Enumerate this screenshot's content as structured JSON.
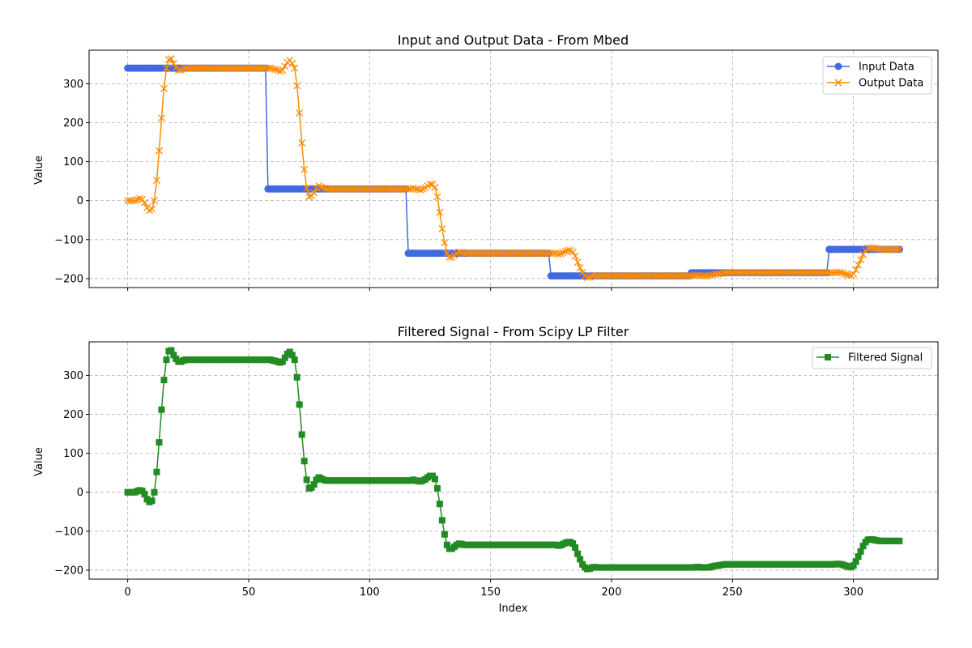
{
  "chart_data": [
    {
      "type": "line",
      "title": "Input and Output Data - From Mbed",
      "xlabel": "",
      "ylabel": "Value",
      "xlim": [
        -15.95,
        334.95
      ],
      "ylim": [
        -223,
        386
      ],
      "x_ticks": [
        0,
        50,
        100,
        150,
        200,
        250,
        300
      ],
      "x_tick_labels_shown": false,
      "y_ticks": [
        -200,
        -100,
        0,
        100,
        200,
        300
      ],
      "y_tick_labels": [
        "−200",
        "−100",
        "0",
        "100",
        "200",
        "300"
      ],
      "grid": true,
      "legend_position": "top-right",
      "series": [
        {
          "name": "Input Data",
          "color": "#4169e1",
          "marker": "circle",
          "segments": [
            {
              "x_start": 0,
              "x_end": 57,
              "y": 340
            },
            {
              "x_start": 58,
              "x_end": 115,
              "y": 30
            },
            {
              "x_start": 116,
              "x_end": 174,
              "y": -135
            },
            {
              "x_start": 175,
              "x_end": 232,
              "y": -193
            },
            {
              "x_start": 233,
              "x_end": 289,
              "y": -185
            },
            {
              "x_start": 290,
              "x_end": 319,
              "y": -125
            }
          ]
        },
        {
          "name": "Output Data",
          "color": "#ff8c00",
          "marker": "x",
          "points": [
            [
              0,
              0
            ],
            [
              1,
              0
            ],
            [
              2,
              0
            ],
            [
              3,
              0
            ],
            [
              4,
              3
            ],
            [
              5,
              5
            ],
            [
              6,
              3
            ],
            [
              7,
              -5
            ],
            [
              8,
              -18
            ],
            [
              9,
              -25
            ],
            [
              10,
              -22
            ],
            [
              11,
              0
            ],
            [
              12,
              52
            ],
            [
              13,
              128
            ],
            [
              14,
              212
            ],
            [
              15,
              288
            ],
            [
              16,
              340
            ],
            [
              17,
              362
            ],
            [
              18,
              364
            ],
            [
              19,
              352
            ],
            [
              20,
              342
            ],
            [
              21,
              335
            ],
            [
              22,
              335
            ],
            [
              23,
              338
            ],
            [
              58,
              340
            ],
            [
              59,
              340
            ],
            [
              60,
              338
            ],
            [
              61,
              337
            ],
            [
              62,
              335
            ],
            [
              63,
              333
            ],
            [
              64,
              335
            ],
            [
              65,
              345
            ],
            [
              66,
              355
            ],
            [
              67,
              360
            ],
            [
              68,
              352
            ],
            [
              69,
              340
            ],
            [
              70,
              295
            ],
            [
              71,
              225
            ],
            [
              72,
              148
            ],
            [
              73,
              80
            ],
            [
              74,
              32
            ],
            [
              75,
              10
            ],
            [
              76,
              12
            ],
            [
              77,
              20
            ],
            [
              78,
              32
            ],
            [
              79,
              38
            ],
            [
              80,
              35
            ],
            [
              81,
              32
            ],
            [
              116,
              30
            ],
            [
              117,
              30
            ],
            [
              118,
              32
            ],
            [
              119,
              30
            ],
            [
              120,
              29
            ],
            [
              121,
              28
            ],
            [
              122,
              30
            ],
            [
              123,
              33
            ],
            [
              124,
              38
            ],
            [
              125,
              42
            ],
            [
              126,
              42
            ],
            [
              127,
              34
            ],
            [
              128,
              10
            ],
            [
              129,
              -30
            ],
            [
              130,
              -72
            ],
            [
              131,
              -108
            ],
            [
              132,
              -135
            ],
            [
              133,
              -145
            ],
            [
              134,
              -145
            ],
            [
              135,
              -140
            ],
            [
              136,
              -135
            ],
            [
              137,
              -132
            ],
            [
              138,
              -133
            ],
            [
              139,
              -135
            ],
            [
              175,
              -135
            ],
            [
              176,
              -135
            ],
            [
              177,
              -135
            ],
            [
              178,
              -137
            ],
            [
              179,
              -136
            ],
            [
              180,
              -133
            ],
            [
              181,
              -130
            ],
            [
              182,
              -128
            ],
            [
              183,
              -128
            ],
            [
              184,
              -132
            ],
            [
              185,
              -142
            ],
            [
              186,
              -158
            ],
            [
              187,
              -172
            ],
            [
              188,
              -185
            ],
            [
              189,
              -193
            ],
            [
              190,
              -197
            ],
            [
              191,
              -196
            ],
            [
              192,
              -193
            ],
            [
              193,
              -192
            ],
            [
              194,
              -193
            ],
            [
              233,
              -193
            ],
            [
              234,
              -193
            ],
            [
              235,
              -192
            ],
            [
              236,
              -192
            ],
            [
              237,
              -193
            ],
            [
              238,
              -193
            ],
            [
              239,
              -193
            ],
            [
              240,
              -193
            ],
            [
              241,
              -192
            ],
            [
              242,
              -190
            ],
            [
              243,
              -189
            ],
            [
              244,
              -188
            ],
            [
              245,
              -187
            ],
            [
              246,
              -186
            ],
            [
              247,
              -185
            ],
            [
              248,
              -185
            ],
            [
              249,
              -185
            ],
            [
              290,
              -185
            ],
            [
              291,
              -185
            ],
            [
              292,
              -185
            ],
            [
              293,
              -184
            ],
            [
              294,
              -184
            ],
            [
              295,
              -185
            ],
            [
              296,
              -187
            ],
            [
              297,
              -189
            ],
            [
              298,
              -191
            ],
            [
              299,
              -192
            ],
            [
              300,
              -188
            ],
            [
              301,
              -178
            ],
            [
              302,
              -165
            ],
            [
              303,
              -152
            ],
            [
              304,
              -138
            ],
            [
              305,
              -128
            ],
            [
              306,
              -122
            ],
            [
              307,
              -121
            ],
            [
              308,
              -121
            ],
            [
              309,
              -123
            ],
            [
              310,
              -124
            ],
            [
              311,
              -125
            ],
            [
              312,
              -125
            ],
            [
              313,
              -125
            ],
            [
              314,
              -125
            ],
            [
              315,
              -125
            ],
            [
              316,
              -125
            ],
            [
              317,
              -125
            ],
            [
              318,
              -125
            ],
            [
              319,
              -125
            ]
          ],
          "plateaus": [
            {
              "x_start": 24,
              "x_end": 57,
              "y": 340
            },
            {
              "x_start": 82,
              "x_end": 115,
              "y": 30
            },
            {
              "x_start": 140,
              "x_end": 174,
              "y": -135
            },
            {
              "x_start": 195,
              "x_end": 232,
              "y": -193
            },
            {
              "x_start": 250,
              "x_end": 289,
              "y": -185
            }
          ]
        }
      ]
    },
    {
      "type": "line",
      "title": "Filtered Signal - From Scipy LP Filter",
      "xlabel": "Index",
      "ylabel": "Value",
      "xlim": [
        -15.95,
        334.95
      ],
      "ylim": [
        -223,
        386
      ],
      "x_ticks": [
        0,
        50,
        100,
        150,
        200,
        250,
        300
      ],
      "x_tick_labels": [
        "0",
        "50",
        "100",
        "150",
        "200",
        "250",
        "300"
      ],
      "y_ticks": [
        -200,
        -100,
        0,
        100,
        200,
        300
      ],
      "y_tick_labels": [
        "−200",
        "−100",
        "0",
        "100",
        "200",
        "300"
      ],
      "grid": true,
      "legend_position": "top-right",
      "series": [
        {
          "name": "Filtered Signal",
          "color": "#228b22",
          "marker": "square",
          "same_values_as": "Output Data"
        }
      ]
    }
  ]
}
